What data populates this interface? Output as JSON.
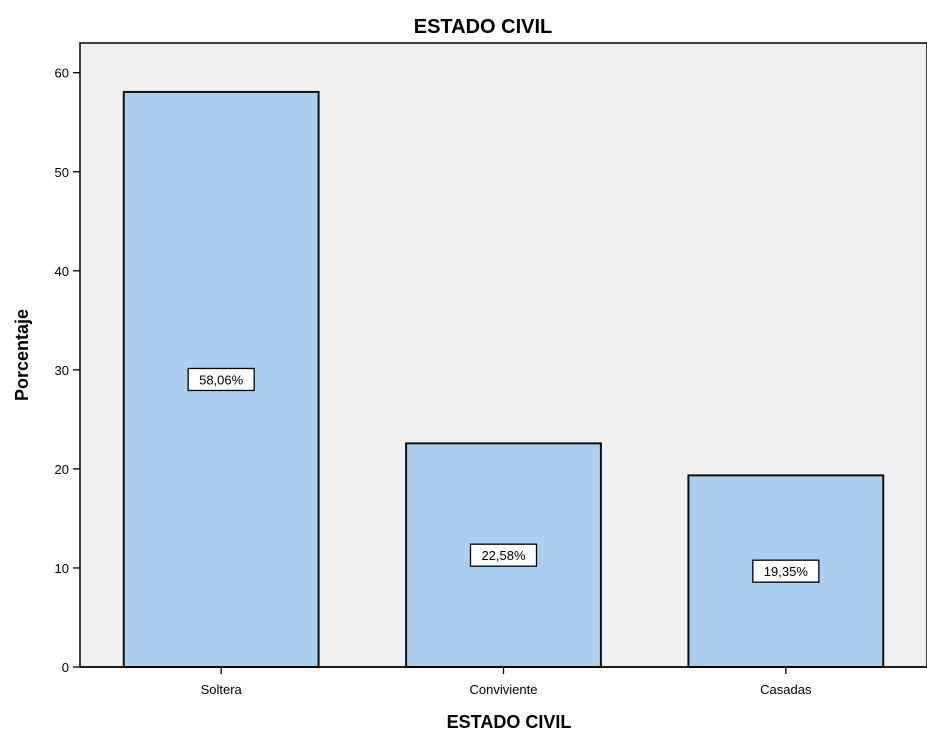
{
  "chart_data": {
    "type": "bar",
    "title": "ESTADO CIVIL",
    "xlabel": "ESTADO CIVIL",
    "ylabel": "Porcentaje",
    "categories": [
      "Soltera",
      "Conviviente",
      "Casadas"
    ],
    "values": [
      58.06,
      22.58,
      19.35
    ],
    "data_labels": [
      "58,06%",
      "22,58%",
      "19,35%"
    ],
    "ylim": [
      0,
      63
    ],
    "yticks": [
      0,
      10,
      20,
      30,
      40,
      50,
      60
    ],
    "ytick_labels": [
      "0",
      "10",
      "20",
      "30",
      "40",
      "50",
      "60"
    ],
    "grid": false,
    "colors": {
      "bar_fill": "#abcfee",
      "bar_stroke": "#111111",
      "plot_background": "#f0f0f0",
      "axis": "#000000",
      "label_box_fill": "#ffffff"
    }
  }
}
